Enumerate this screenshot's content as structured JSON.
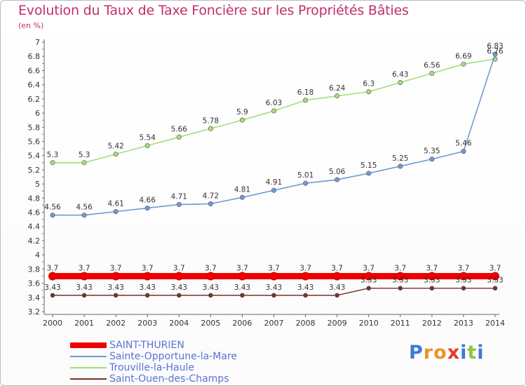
{
  "title": "Evolution du Taux de Taxe Foncière sur les Propriétés Bâties",
  "unit": "(en %)",
  "brand": {
    "letters": [
      "P",
      "r",
      "o",
      "x",
      "i",
      "t",
      "i"
    ],
    "colors": [
      "#3a7bd5",
      "#e8962a",
      "#e8962a",
      "#e23b2e",
      "#3a7bd5",
      "#8cc63f",
      "#3a7bd5"
    ]
  },
  "chart_data": {
    "type": "line",
    "title": "Evolution du Taux de Taxe Foncière sur les Propriétés Bâties",
    "ylabel": "(en %)",
    "xlabel": "",
    "ylim": [
      3.2,
      7.0
    ],
    "yticks": [
      "3.2",
      "3.4",
      "3.6",
      "3.8",
      "4",
      "4.2",
      "4.4",
      "4.6",
      "4.8",
      "5",
      "5.2",
      "5.4",
      "5.6",
      "5.8",
      "6",
      "6.2",
      "6.4",
      "6.6",
      "6.8",
      "7"
    ],
    "categories": [
      "2000",
      "2001",
      "2002",
      "2003",
      "2004",
      "2005",
      "2006",
      "2007",
      "2008",
      "2009",
      "2010",
      "2011",
      "2012",
      "2013",
      "2014"
    ],
    "series": [
      {
        "name": "SAINT-THURIEN",
        "color": "#ee0000",
        "values": [
          3.7,
          3.7,
          3.7,
          3.7,
          3.7,
          3.7,
          3.7,
          3.7,
          3.7,
          3.7,
          3.7,
          3.7,
          3.7,
          3.7,
          3.7
        ],
        "labels": [
          "3.7",
          "3.7",
          "3.7",
          "3.7",
          "3.7",
          "3.7",
          "3.7",
          "3.7",
          "3.7",
          "3.7",
          "3.7",
          "3.7",
          "3.7",
          "3.7",
          "3.7"
        ]
      },
      {
        "name": "Sainte-Opportune-la-Mare",
        "color": "#6e9bd1",
        "values": [
          4.56,
          4.56,
          4.61,
          4.66,
          4.71,
          4.72,
          4.81,
          4.91,
          5.01,
          5.06,
          5.15,
          5.25,
          5.35,
          5.46,
          6.83
        ],
        "labels": [
          "4.56",
          "4.56",
          "4.61",
          "4.66",
          "4.71",
          "4.72",
          "4.81",
          "4.91",
          "5.01",
          "5.06",
          "5.15",
          "5.25",
          "5.35",
          "5.46",
          "6.83"
        ]
      },
      {
        "name": "Trouville-la-Haule",
        "color": "#a8dc7a",
        "values": [
          5.3,
          5.3,
          5.42,
          5.54,
          5.66,
          5.78,
          5.9,
          6.03,
          6.18,
          6.24,
          6.3,
          6.43,
          6.56,
          6.69,
          6.76
        ],
        "labels": [
          "5.3",
          "5.3",
          "5.42",
          "5.54",
          "5.66",
          "5.78",
          "5.9",
          "6.03",
          "6.18",
          "6.24",
          "6.3",
          "6.43",
          "6.56",
          "6.69",
          "6.76"
        ]
      },
      {
        "name": "Saint-Ouen-des-Champs",
        "color": "#7a3030",
        "values": [
          3.43,
          3.43,
          3.43,
          3.43,
          3.43,
          3.43,
          3.43,
          3.43,
          3.43,
          3.43,
          3.53,
          3.53,
          3.53,
          3.53,
          3.53
        ],
        "labels": [
          "3.43",
          "3.43",
          "3.43",
          "3.43",
          "3.43",
          "3.43",
          "3.43",
          "3.43",
          "3.43",
          "3.43",
          "3.53",
          "3.53",
          "3.53",
          "3.53",
          "3.53"
        ]
      }
    ],
    "legend": {
      "position": "bottom-left"
    }
  }
}
